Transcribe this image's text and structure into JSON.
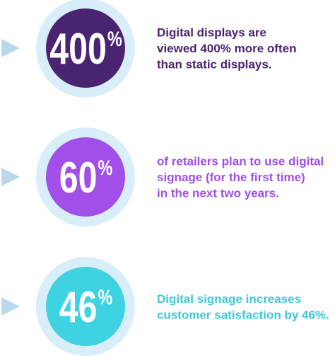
{
  "items": [
    {
      "stat": "400",
      "unit": "%",
      "color": "#4a2371",
      "text_color": "#4a2371",
      "lines": [
        "Digital displays are",
        "viewed 400% more often",
        "than static displays."
      ]
    },
    {
      "stat": "60",
      "unit": "%",
      "color": "#a24ee8",
      "text_color": "#a24ee6",
      "lines": [
        "of retailers plan to use digital",
        "signage (for the first time)",
        "in the next two years."
      ]
    },
    {
      "stat": "46",
      "unit": "%",
      "color": "#3fd2e1",
      "text_color": "#3cc8d8",
      "lines": [
        "Digital signage increases",
        "customer satisfaction by 46%."
      ]
    }
  ]
}
